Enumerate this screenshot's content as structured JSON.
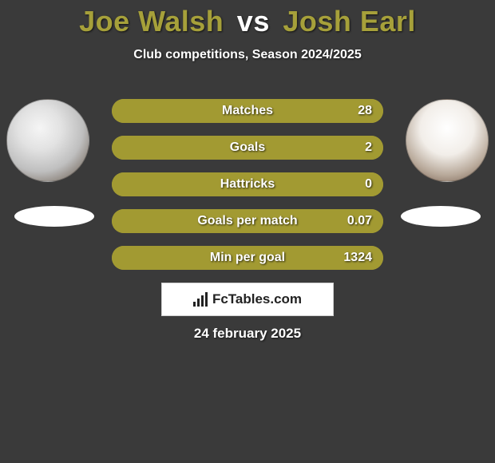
{
  "background_color": "#3a3a3a",
  "title": {
    "player1": "Joe Walsh",
    "vs": "vs",
    "player2": "Josh Earl",
    "player1_color": "#a6a03a",
    "vs_color": "#ffffff",
    "player2_color": "#a6a03a",
    "fontsize": 36
  },
  "subtitle": "Club competitions, Season 2024/2025",
  "bars": {
    "track_color": "#a29a32",
    "fill_color": "#a29a32",
    "bar_border_radius": 15,
    "items": [
      {
        "label": "Matches",
        "value": "28",
        "fill_pct": 100
      },
      {
        "label": "Goals",
        "value": "2",
        "fill_pct": 100
      },
      {
        "label": "Hattricks",
        "value": "0",
        "fill_pct": 100
      },
      {
        "label": "Goals per match",
        "value": "0.07",
        "fill_pct": 100
      },
      {
        "label": "Min per goal",
        "value": "1324",
        "fill_pct": 100
      }
    ]
  },
  "logo": {
    "text_prefix": "Fc",
    "text_main": "Tables",
    "text_suffix": ".com",
    "box_bg": "#ffffff",
    "text_color": "#222222"
  },
  "date": "24 february 2025",
  "avatars": {
    "left_alt": "player-1-avatar",
    "right_alt": "player-2-avatar"
  },
  "ellipse_color": "#ffffff"
}
